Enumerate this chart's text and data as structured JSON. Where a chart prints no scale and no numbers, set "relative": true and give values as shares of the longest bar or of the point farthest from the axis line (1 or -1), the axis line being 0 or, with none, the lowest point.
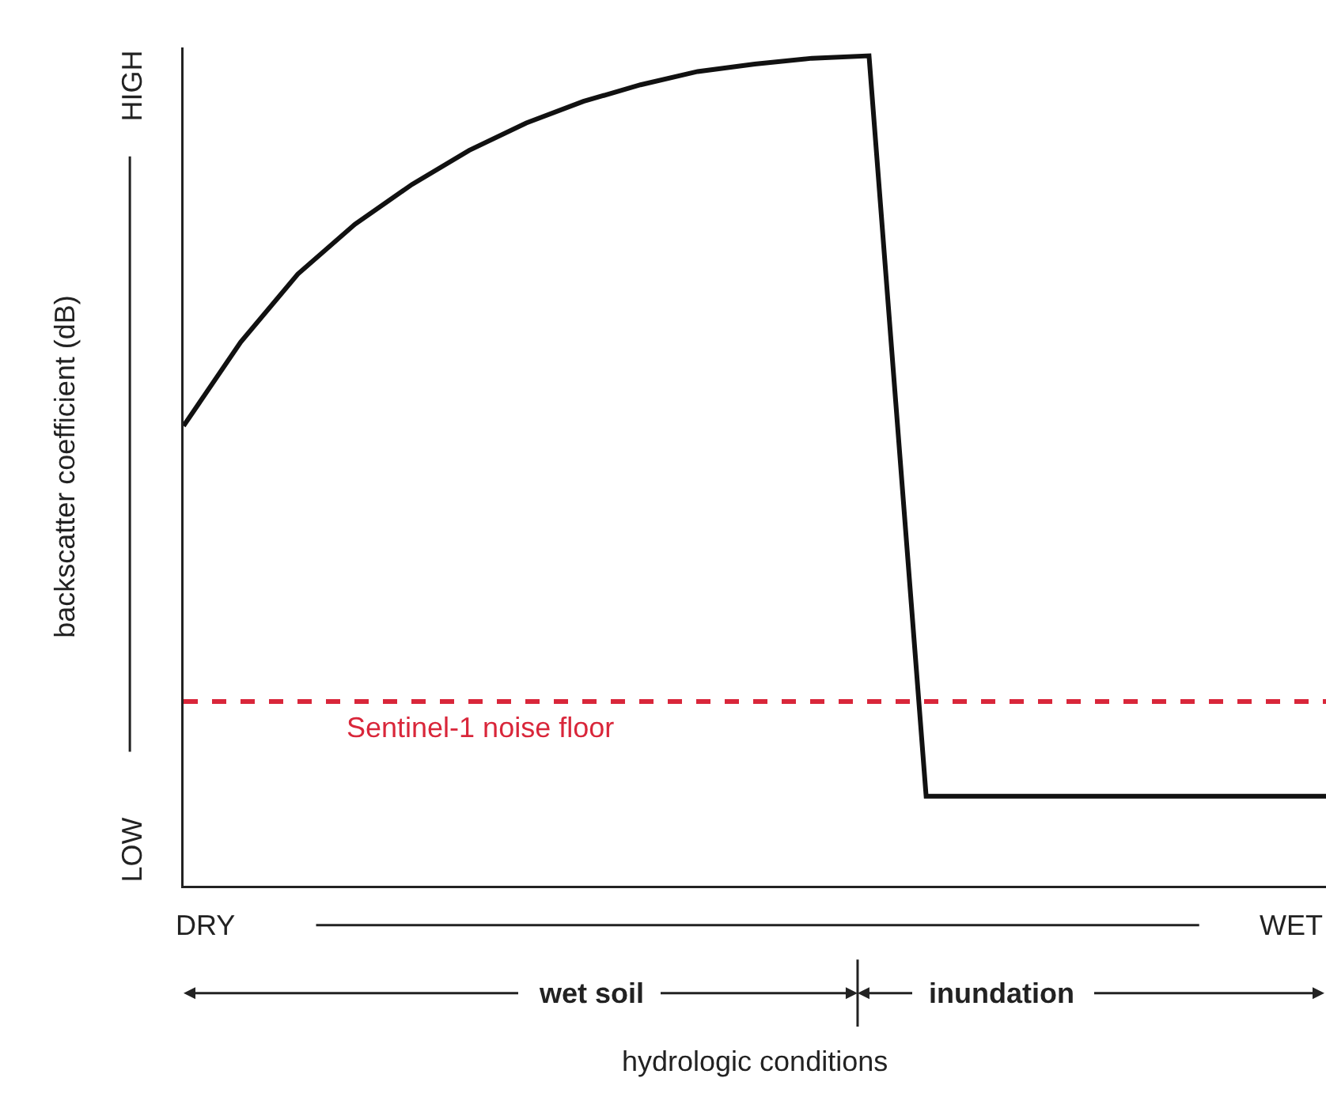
{
  "chart_data": {
    "type": "line",
    "relative": true,
    "ylabel": "backscatter coefficient (dB)",
    "categories": [
      null,
      null,
      null,
      null,
      null,
      null,
      null,
      null,
      null,
      null,
      null,
      null,
      null,
      null,
      null,
      null,
      null,
      null,
      null,
      null,
      null
    ],
    "series": [
      {
        "color": "#111111",
        "values": [
          0.554,
          0.655,
          0.737,
          0.797,
          0.845,
          0.886,
          0.919,
          0.945,
          0.965,
          0.981,
          0.99,
          0.997,
          1.0,
          0.108,
          0.108,
          0.108,
          0.108,
          0.108,
          0.108,
          0.108,
          0.108
        ]
      }
    ],
    "ref_lines": [
      {
        "axis": "y",
        "value": 0.222,
        "label": "Sentinel-1 noise floor",
        "color": "#d9263a",
        "line_style": "dashed"
      }
    ],
    "annotations": [
      "HIGH",
      "LOW",
      "DRY",
      "WET",
      "wet soil",
      "inundation",
      "hydrologic conditions"
    ],
    "marker": "none",
    "line_style": "solid"
  }
}
